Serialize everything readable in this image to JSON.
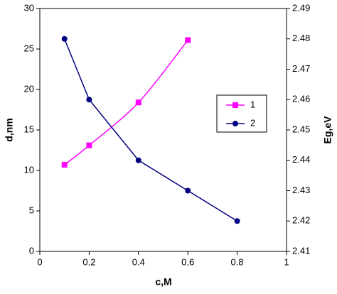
{
  "chart_data": {
    "type": "line",
    "xlabel": "c,M",
    "ylabel": "d,nm",
    "y2label": "Eg,eV",
    "xlim": [
      0,
      1
    ],
    "xticks": [
      0,
      0.2,
      0.4,
      0.6,
      0.8,
      1
    ],
    "ylim": [
      0,
      30
    ],
    "yticks": [
      0,
      5,
      10,
      15,
      20,
      25,
      30
    ],
    "y2lim": [
      2.41,
      2.49
    ],
    "y2ticks": [
      2.41,
      2.42,
      2.43,
      2.44,
      2.45,
      2.46,
      2.47,
      2.48,
      2.49
    ],
    "legend": "right",
    "series": [
      {
        "name": "1",
        "color": "#ff00ff",
        "marker": "square",
        "smooth": true,
        "axis": "y",
        "x": [
          0.1,
          0.2,
          0.4,
          0.6
        ],
        "values": [
          10.7,
          13.1,
          18.4,
          26.1
        ]
      },
      {
        "name": "2",
        "color": "#000080",
        "marker": "circle",
        "smooth": false,
        "axis": "y2",
        "x": [
          0.1,
          0.2,
          0.4,
          0.6,
          0.8
        ],
        "values": [
          2.48,
          2.46,
          2.44,
          2.43,
          2.42
        ]
      }
    ]
  }
}
